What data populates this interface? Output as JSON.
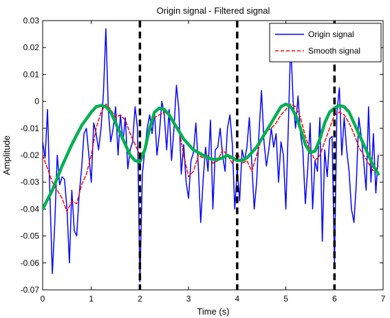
{
  "chart_data": {
    "type": "line",
    "title": "Origin signal - Filtered signal",
    "xlabel": "Time (s)",
    "ylabel": "Amplitude",
    "xlim": [
      0,
      7
    ],
    "ylim": [
      -0.07,
      0.03
    ],
    "xticks": [
      0,
      1,
      2,
      3,
      4,
      5,
      6,
      7
    ],
    "yticks": [
      0.03,
      0.02,
      0.01,
      0,
      -0.01,
      -0.02,
      -0.03,
      -0.04,
      -0.05,
      -0.06,
      -0.07
    ],
    "xtick_labels": [
      "0",
      "1",
      "2",
      "3",
      "4",
      "5",
      "6",
      "7"
    ],
    "ytick_labels": [
      "0.03",
      "0.02",
      "0.01",
      "0",
      "-0.01",
      "-0.02",
      "-0.03",
      "-0.04",
      "-0.05",
      "-0.06",
      "-0.07"
    ],
    "grid": false,
    "legend_position": "top-right",
    "vertical_markers": [
      2.0,
      4.0,
      6.0
    ],
    "marker_color": "#000000",
    "series": [
      {
        "name": "Origin signal",
        "color": "#0000ff",
        "style": "solid",
        "x": [
          0,
          0.05,
          0.1,
          0.15,
          0.2,
          0.25,
          0.3,
          0.35,
          0.4,
          0.45,
          0.5,
          0.55,
          0.6,
          0.65,
          0.7,
          0.75,
          0.8,
          0.85,
          0.9,
          0.95,
          1.0,
          1.05,
          1.1,
          1.15,
          1.2,
          1.25,
          1.3,
          1.35,
          1.4,
          1.45,
          1.5,
          1.55,
          1.6,
          1.65,
          1.7,
          1.75,
          1.8,
          1.85,
          1.9,
          1.95,
          2.0,
          2.05,
          2.1,
          2.15,
          2.2,
          2.25,
          2.3,
          2.35,
          2.4,
          2.45,
          2.5,
          2.55,
          2.6,
          2.65,
          2.7,
          2.75,
          2.8,
          2.85,
          2.9,
          2.95,
          3.0,
          3.05,
          3.1,
          3.15,
          3.2,
          3.25,
          3.3,
          3.35,
          3.4,
          3.45,
          3.5,
          3.55,
          3.6,
          3.65,
          3.7,
          3.75,
          3.8,
          3.85,
          3.9,
          3.95,
          4.0,
          4.05,
          4.1,
          4.15,
          4.2,
          4.25,
          4.3,
          4.35,
          4.4,
          4.45,
          4.5,
          4.55,
          4.6,
          4.65,
          4.7,
          4.75,
          4.8,
          4.85,
          4.9,
          4.95,
          5.0,
          5.05,
          5.1,
          5.15,
          5.2,
          5.25,
          5.3,
          5.35,
          5.4,
          5.45,
          5.5,
          5.55,
          5.6,
          5.65,
          5.7,
          5.75,
          5.8,
          5.85,
          5.9,
          5.95,
          6.0,
          6.05,
          6.1,
          6.15,
          6.2,
          6.25,
          6.3,
          6.35,
          6.4,
          6.45,
          6.5,
          6.55,
          6.6,
          6.65,
          6.7,
          6.75,
          6.8,
          6.85,
          6.9
        ],
        "y": [
          -0.015,
          -0.021,
          -0.003,
          -0.035,
          -0.064,
          -0.045,
          -0.02,
          -0.031,
          -0.028,
          -0.029,
          -0.04,
          -0.06,
          -0.033,
          -0.048,
          -0.05,
          -0.035,
          -0.025,
          -0.012,
          -0.01,
          -0.02,
          -0.03,
          -0.008,
          -0.012,
          -0.018,
          -0.01,
          0.003,
          0.027,
          -0.003,
          -0.015,
          -0.01,
          -0.002,
          -0.02,
          -0.005,
          -0.015,
          -0.006,
          -0.025,
          -0.018,
          -0.015,
          -0.002,
          -0.01,
          -0.067,
          -0.027,
          -0.018,
          -0.01,
          -0.005,
          -0.012,
          -0.004,
          -0.02,
          -0.012,
          0.0,
          -0.005,
          -0.018,
          -0.003,
          -0.022,
          -0.01,
          0.006,
          -0.003,
          -0.027,
          -0.016,
          -0.03,
          -0.036,
          -0.022,
          -0.019,
          -0.008,
          -0.024,
          -0.045,
          -0.029,
          -0.017,
          -0.026,
          -0.007,
          -0.04,
          -0.018,
          -0.017,
          -0.01,
          -0.02,
          -0.026,
          -0.01,
          -0.005,
          -0.016,
          -0.04,
          -0.025,
          -0.037,
          -0.018,
          -0.022,
          -0.017,
          -0.006,
          -0.023,
          -0.04,
          -0.03,
          -0.011,
          0.004,
          -0.015,
          -0.024,
          -0.018,
          -0.01,
          -0.017,
          -0.012,
          -0.03,
          -0.015,
          -0.02,
          -0.04,
          -0.01,
          0.022,
          0.0,
          -0.01,
          0.002,
          -0.012,
          -0.018,
          -0.038,
          -0.025,
          -0.008,
          -0.04,
          -0.022,
          -0.026,
          -0.006,
          -0.052,
          -0.018,
          -0.028,
          -0.014,
          -0.013,
          -0.06,
          -0.004,
          0.005,
          -0.02,
          -0.006,
          -0.018,
          -0.026,
          -0.04,
          -0.045,
          -0.03,
          -0.006,
          -0.013,
          -0.022,
          -0.033,
          -0.002,
          -0.03,
          -0.012,
          -0.034,
          -0.02
        ]
      },
      {
        "name": "Smooth signal",
        "color": "#ff0000",
        "style": "dashed",
        "x": [
          0,
          0.1,
          0.2,
          0.3,
          0.4,
          0.5,
          0.6,
          0.7,
          0.8,
          0.9,
          1.0,
          1.1,
          1.2,
          1.3,
          1.4,
          1.5,
          1.6,
          1.7,
          1.8,
          1.9,
          2.0,
          2.1,
          2.2,
          2.3,
          2.4,
          2.5,
          2.6,
          2.7,
          2.8,
          2.9,
          3.0,
          3.1,
          3.2,
          3.3,
          3.4,
          3.5,
          3.6,
          3.7,
          3.8,
          3.9,
          4.0,
          4.1,
          4.2,
          4.3,
          4.4,
          4.5,
          4.6,
          4.7,
          4.8,
          4.9,
          5.0,
          5.1,
          5.2,
          5.3,
          5.4,
          5.5,
          5.6,
          5.7,
          5.8,
          5.9,
          6.0,
          6.1,
          6.2,
          6.3,
          6.4,
          6.5,
          6.6,
          6.7,
          6.8,
          6.9
        ],
        "y": [
          -0.02,
          -0.025,
          -0.03,
          -0.033,
          -0.036,
          -0.041,
          -0.037,
          -0.038,
          -0.031,
          -0.027,
          -0.02,
          -0.01,
          -0.004,
          -0.001,
          -0.003,
          -0.006,
          -0.005,
          -0.007,
          -0.012,
          -0.016,
          -0.02,
          -0.018,
          -0.01,
          -0.006,
          -0.005,
          -0.004,
          -0.005,
          -0.008,
          -0.01,
          -0.02,
          -0.028,
          -0.026,
          -0.02,
          -0.021,
          -0.02,
          -0.023,
          -0.022,
          -0.018,
          -0.02,
          -0.023,
          -0.019,
          -0.023,
          -0.022,
          -0.026,
          -0.02,
          -0.014,
          -0.011,
          -0.01,
          -0.008,
          -0.005,
          -0.003,
          -0.001,
          -0.002,
          -0.006,
          -0.013,
          -0.018,
          -0.022,
          -0.02,
          -0.015,
          -0.01,
          -0.005,
          -0.004,
          -0.005,
          -0.008,
          -0.012,
          -0.017,
          -0.02,
          -0.023,
          -0.026,
          -0.024
        ]
      },
      {
        "name": "",
        "color": "#00b050",
        "style": "solid",
        "x": [
          0,
          0.2,
          0.4,
          0.6,
          0.8,
          1.0,
          1.1,
          1.2,
          1.3,
          1.4,
          1.5,
          1.6,
          1.7,
          1.8,
          1.9,
          2.0,
          2.1,
          2.2,
          2.3,
          2.4,
          2.5,
          2.6,
          2.7,
          2.8,
          2.9,
          3.0,
          3.1,
          3.2,
          3.3,
          3.4,
          3.5,
          3.6,
          3.7,
          3.8,
          3.9,
          4.0,
          4.1,
          4.2,
          4.3,
          4.4,
          4.5,
          4.6,
          4.7,
          4.8,
          4.9,
          5.0,
          5.1,
          5.2,
          5.3,
          5.4,
          5.5,
          5.6,
          5.7,
          5.8,
          5.9,
          6.0,
          6.1,
          6.2,
          6.3,
          6.4,
          6.5,
          6.6,
          6.7,
          6.8,
          6.9
        ],
        "y": [
          -0.04,
          -0.033,
          -0.024,
          -0.016,
          -0.009,
          -0.004,
          -0.002,
          -0.0015,
          -0.002,
          -0.004,
          -0.008,
          -0.012,
          -0.016,
          -0.02,
          -0.022,
          -0.0225,
          -0.018,
          -0.01,
          -0.004,
          -0.0025,
          -0.003,
          -0.005,
          -0.008,
          -0.011,
          -0.014,
          -0.016,
          -0.018,
          -0.019,
          -0.02,
          -0.021,
          -0.0215,
          -0.0215,
          -0.021,
          -0.02,
          -0.021,
          -0.022,
          -0.022,
          -0.021,
          -0.019,
          -0.017,
          -0.014,
          -0.011,
          -0.008,
          -0.005,
          -0.002,
          -0.001,
          -0.002,
          -0.005,
          -0.01,
          -0.016,
          -0.019,
          -0.0185,
          -0.014,
          -0.008,
          -0.004,
          -0.0025,
          -0.0015,
          -0.002,
          -0.004,
          -0.008,
          -0.012,
          -0.016,
          -0.02,
          -0.024,
          -0.027
        ]
      }
    ]
  }
}
